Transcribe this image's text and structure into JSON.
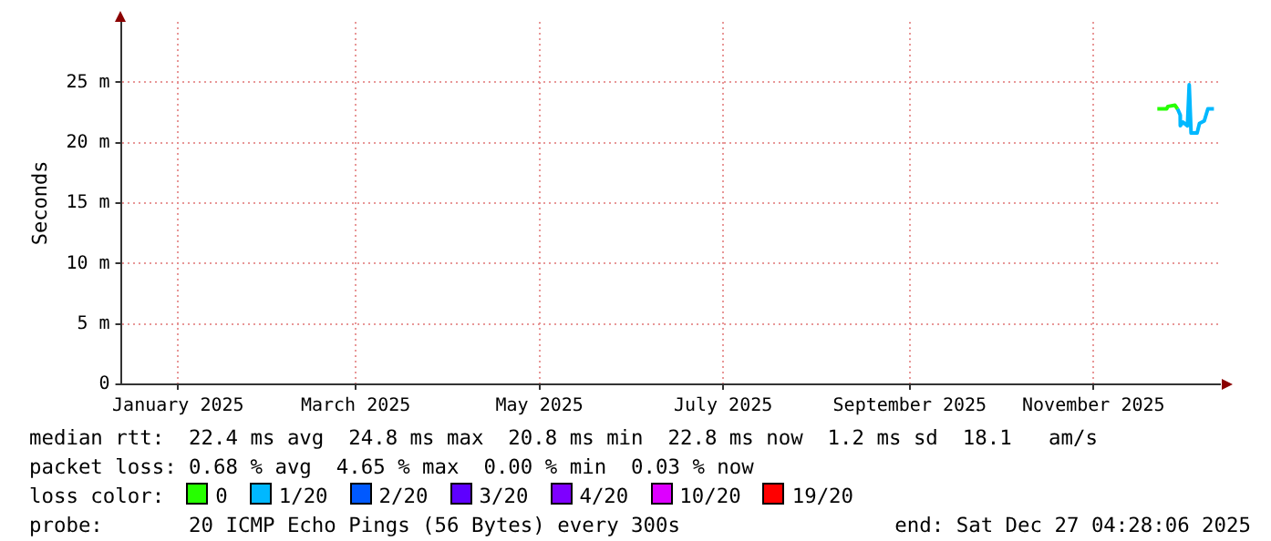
{
  "chart_data": {
    "type": "line",
    "ylabel": "Seconds",
    "legend_title": "loss color:",
    "legend": "bottom",
    "grid": true,
    "marker": "none",
    "line_style": "solid",
    "xlim": [
      "2024-12-27",
      "2025-12-27"
    ],
    "xticks": [
      {
        "value": "2025-01-15",
        "label": "January 2025"
      },
      {
        "value": "2025-03-15",
        "label": "March 2025"
      },
      {
        "value": "2025-05-15",
        "label": "May 2025"
      },
      {
        "value": "2025-07-15",
        "label": "July 2025"
      },
      {
        "value": "2025-09-15",
        "label": "September 2025"
      },
      {
        "value": "2025-11-15",
        "label": "November 2025"
      }
    ],
    "ylim": [
      0,
      30
    ],
    "yticks": [
      0,
      {
        "value": 5,
        "label": "5 m"
      },
      {
        "value": 10,
        "label": "10 m"
      },
      {
        "value": 15,
        "label": "15 m"
      },
      {
        "value": 20,
        "label": "20 m"
      },
      {
        "value": 25,
        "label": "25 m"
      }
    ],
    "x": [
      "2025-12-06T05:00",
      "2025-12-09T07:00",
      "2025-12-09T17:00",
      "2025-12-12T02:00",
      "2025-12-12T22:00",
      "2025-12-13T19:00",
      "2025-12-13T20:00",
      "2025-12-14T17:00",
      "2025-12-16T05:00",
      "2025-12-16T19:00",
      "2025-12-17T10:00",
      "2025-12-19T10:00",
      "2025-12-20T05:00",
      "2025-12-21T19:00",
      "2025-12-23T00:00",
      "2025-12-25T00:00"
    ],
    "series": [
      {
        "name": "0",
        "color": "#26ff00",
        "values": [
          22.8,
          22.8,
          23.0,
          23.1,
          22.8,
          null,
          null,
          null,
          null,
          null,
          null,
          null,
          null,
          null,
          null,
          null
        ]
      },
      {
        "name": "1/20",
        "color": "#00b8ff",
        "values": [
          null,
          null,
          null,
          null,
          22.8,
          22.3,
          21.4,
          21.7,
          21.4,
          24.8,
          20.8,
          20.8,
          21.6,
          21.8,
          22.8,
          22.8
        ]
      },
      {
        "name": "2/20",
        "color": "#0059ff",
        "values": [
          null,
          null,
          null,
          null,
          null,
          null,
          null,
          null,
          null,
          null,
          null,
          null,
          null,
          null,
          null,
          null
        ]
      },
      {
        "name": "3/20",
        "color": "#5e00ff",
        "values": [
          null,
          null,
          null,
          null,
          null,
          null,
          null,
          null,
          null,
          null,
          null,
          null,
          null,
          null,
          null,
          null
        ]
      },
      {
        "name": "4/20",
        "color": "#7e00ff",
        "values": [
          null,
          null,
          null,
          null,
          null,
          null,
          null,
          null,
          null,
          null,
          null,
          null,
          null,
          null,
          null,
          null
        ]
      },
      {
        "name": "10/20",
        "color": "#dd00ff",
        "values": [
          null,
          null,
          null,
          null,
          null,
          null,
          null,
          null,
          null,
          null,
          null,
          null,
          null,
          null,
          null,
          null
        ]
      },
      {
        "name": "19/20",
        "color": "#ff0000",
        "values": [
          null,
          null,
          null,
          null,
          null,
          null,
          null,
          null,
          null,
          null,
          null,
          null,
          null,
          null,
          null,
          null
        ]
      }
    ],
    "annotations": [
      "median rtt:  22.4 ms avg  24.8 ms max  20.8 ms min  22.8 ms now  1.2 ms sd  18.1   am/s",
      "packet loss: 0.68 % avg  4.65 % max  0.00 % min  0.03 % now",
      "probe:       20 ICMP Echo Pings (56 Bytes) every 300s",
      "end: Sat Dec 27 04:28:06 2025"
    ]
  }
}
